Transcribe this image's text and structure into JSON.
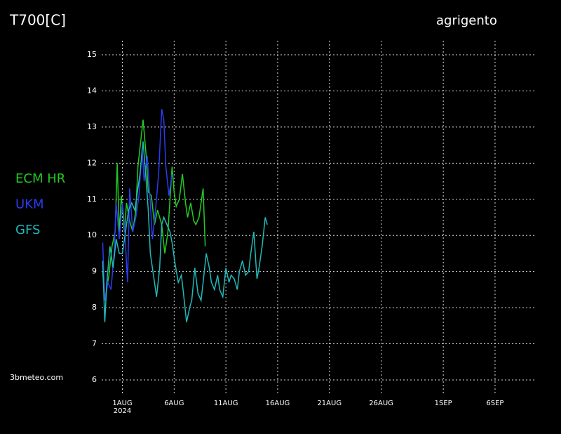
{
  "chart_data": {
    "type": "line",
    "title": "T700[C]",
    "location": "agrigento",
    "source": "3bmeteo.com",
    "year_label": "2024",
    "xlim": [
      -1,
      41
    ],
    "ylim": [
      6,
      15.2
    ],
    "xticks": [
      {
        "value": 1,
        "label": "1AUG"
      },
      {
        "value": 6,
        "label": "6AUG"
      },
      {
        "value": 11,
        "label": "11AUG"
      },
      {
        "value": 16,
        "label": "16AUG"
      },
      {
        "value": 21,
        "label": "21AUG"
      },
      {
        "value": 26,
        "label": "26AUG"
      },
      {
        "value": 32,
        "label": "1SEP"
      },
      {
        "value": 37,
        "label": "6SEP"
      }
    ],
    "yticks": [
      6,
      7,
      8,
      9,
      10,
      11,
      12,
      13,
      14,
      15
    ],
    "grid": true,
    "series": [
      {
        "name": "ECM HR",
        "color": "#22cc22",
        "x": [
          -0.9,
          -0.7,
          -0.3,
          0.0,
          0.3,
          0.5,
          0.7,
          0.9,
          1.2,
          1.4,
          1.7,
          2.0,
          2.3,
          2.5,
          3.0,
          3.3,
          3.5,
          3.8,
          4.1,
          4.4,
          4.8,
          5.1,
          5.4,
          5.8,
          6.0,
          6.2,
          6.5,
          6.8,
          7.1,
          7.3,
          7.6,
          7.9,
          8.1,
          8.4,
          8.8,
          9.0
        ],
        "values": [
          9.0,
          8.2,
          8.9,
          9.7,
          10.1,
          12.0,
          10.1,
          11.1,
          10.1,
          10.9,
          10.4,
          10.1,
          10.7,
          11.9,
          13.2,
          12.2,
          11.2,
          11.1,
          10.3,
          10.7,
          10.3,
          9.5,
          10.1,
          11.9,
          11.2,
          10.8,
          11.0,
          11.7,
          10.9,
          10.5,
          10.9,
          10.4,
          10.3,
          10.5,
          11.3,
          9.7
        ]
      },
      {
        "name": "UKM",
        "color": "#2a3cf0",
        "x": [
          -0.9,
          -0.7,
          -0.4,
          -0.1,
          0.2,
          0.4,
          0.7,
          1.0,
          1.2,
          1.5,
          1.7,
          2.0,
          2.3,
          2.6,
          2.9,
          3.1,
          3.4,
          3.7,
          3.9,
          4.2,
          4.5,
          4.8,
          5.0,
          5.2,
          5.5,
          5.8
        ],
        "values": [
          9.8,
          8.2,
          8.7,
          8.5,
          9.5,
          10.9,
          9.9,
          10.9,
          10.3,
          8.7,
          11.3,
          10.1,
          10.5,
          11.1,
          12.4,
          11.5,
          12.2,
          10.9,
          9.9,
          10.7,
          11.7,
          13.5,
          13.2,
          11.9,
          11.1,
          11.7
        ]
      },
      {
        "name": "GFS",
        "color": "#22b8b8",
        "x": [
          -0.9,
          -0.7,
          -0.5,
          -0.2,
          0.1,
          0.4,
          0.7,
          1.0,
          1.3,
          1.6,
          1.9,
          2.2,
          2.5,
          2.7,
          3.0,
          3.3,
          3.5,
          3.7,
          4.0,
          4.3,
          4.6,
          4.8,
          5.0,
          5.3,
          5.6,
          5.8,
          6.1,
          6.4,
          6.7,
          6.9,
          7.2,
          7.5,
          7.7,
          8.0,
          8.3,
          8.6,
          8.8,
          9.1,
          9.4,
          9.6,
          9.9,
          10.2,
          10.4,
          10.7,
          11.0,
          11.3,
          11.5,
          11.8,
          12.1,
          12.3,
          12.6,
          12.9,
          13.2,
          13.4,
          13.7,
          14.0,
          14.2,
          14.5,
          14.8,
          15.0
        ],
        "values": [
          9.3,
          7.6,
          8.7,
          9.7,
          9.1,
          9.9,
          9.5,
          9.5,
          10.1,
          10.7,
          10.9,
          10.7,
          11.3,
          11.7,
          12.6,
          11.5,
          10.7,
          9.5,
          8.9,
          8.3,
          9.1,
          10.3,
          10.5,
          10.3,
          10.1,
          9.8,
          9.2,
          8.7,
          8.9,
          8.4,
          7.6,
          8.0,
          8.2,
          9.1,
          8.4,
          8.2,
          8.7,
          9.5,
          9.1,
          8.7,
          8.5,
          8.9,
          8.5,
          8.3,
          9.1,
          8.7,
          8.9,
          8.8,
          8.5,
          9.0,
          9.3,
          8.9,
          9.0,
          9.5,
          10.1,
          8.8,
          9.1,
          9.7,
          10.5,
          10.3
        ]
      }
    ]
  }
}
